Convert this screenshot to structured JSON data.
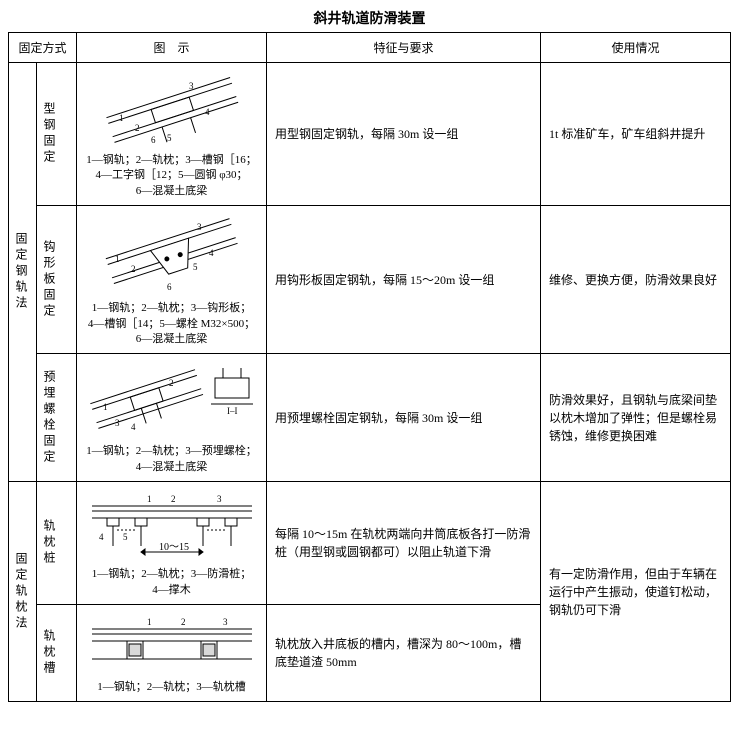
{
  "title": "斜井轨道防滑装置",
  "headers": {
    "fixMethod": "固定方式",
    "diagram": "图　示",
    "feature": "特征与要求",
    "usage": "使用情况"
  },
  "groups": [
    {
      "groupLabel": "固定钢轨法",
      "rows": [
        {
          "subLabel": "型钢固定",
          "caption": "1—钢轨；2—轨枕；3—槽钢［16；\n4—工字钢［12；5—圆钢 φ30；\n6—混凝土底梁",
          "feature": "用型钢固定钢轨，每隔 30m 设一组",
          "usage": "1t 标准矿车，矿车组斜井提升"
        },
        {
          "subLabel": "钩形板固定",
          "caption": "1—钢轨；2—轨枕；3—钩形板；\n4—槽钢［14；5—螺栓 M32×500；\n6—混凝土底梁",
          "feature": "用钩形板固定钢轨，每隔 15～20m 设一组",
          "usage": "维修、更换方便，防滑效果良好"
        },
        {
          "subLabel": "预埋螺栓固定",
          "caption": "1—钢轨；2—轨枕；3—预埋螺栓；\n4—混凝土底梁",
          "feature": "用预埋螺栓固定钢轨，每隔 30m 设一组",
          "usage": "防滑效果好，且钢轨与底梁间垫以枕木增加了弹性；但是螺栓易锈蚀，维修更换困难"
        }
      ]
    },
    {
      "groupLabel": "固定轨枕法",
      "rows": [
        {
          "subLabel": "轨枕桩",
          "caption": "1—钢轨；2—轨枕；3—防滑桩；\n4—撑木",
          "feature": "每隔 10～15m 在轨枕两端向井筒底板各打一防滑桩（用型钢或圆钢都可）以阻止轨道下滑",
          "usage": ""
        },
        {
          "subLabel": "轨枕槽",
          "caption": "1—钢轨；2—轨枕；3—轨枕槽",
          "feature": "轨枕放入井底板的槽内，槽深为 80～100m，槽底垫道渣 50mm",
          "usage": ""
        }
      ],
      "groupUsage": "有一定防滑作用，但由于车辆在运行中产生振动，使道钉松动，钢轨仍可下滑"
    }
  ]
}
